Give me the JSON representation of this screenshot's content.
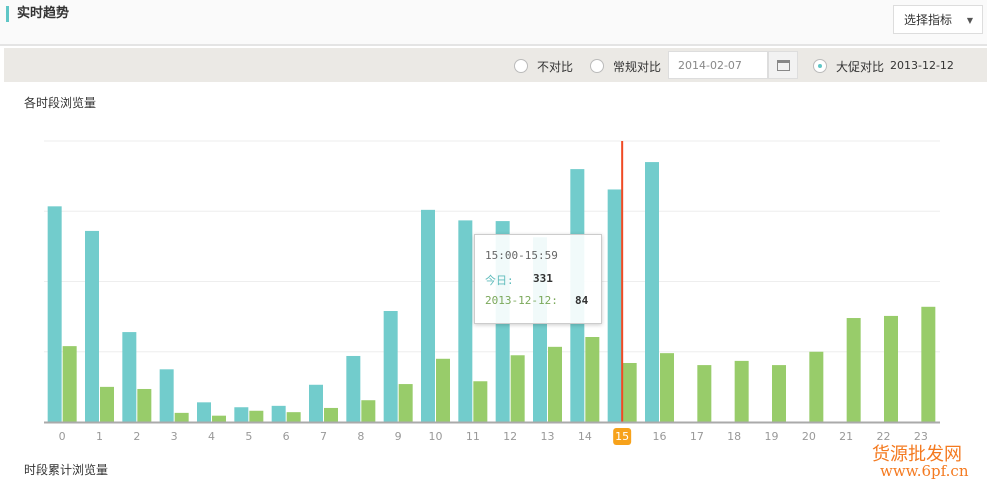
{
  "header": {
    "title": "实时趋势",
    "select_label": "选择指标"
  },
  "compare": {
    "options": [
      "不对比",
      "常规对比",
      "大促对比"
    ],
    "selected": "大促对比",
    "regular_date": "2014-02-07",
    "promo_date": "2013-12-12"
  },
  "section1_title": "各时段浏览量",
  "section2_title": "时段累计浏览量",
  "tooltip": {
    "time": "15:00-15:59",
    "today_label": "今日:",
    "today_value": "331",
    "compare_label": "2013-12-12:",
    "compare_value": "84"
  },
  "watermark": {
    "line1": "货源批发网",
    "line2": "www.6pf.cn"
  },
  "colors": {
    "today": "#72cccc",
    "compare": "#98cc6a",
    "cursor": "#f04a24",
    "highlight": "#f7a21b"
  },
  "chart_data": {
    "type": "bar",
    "ylim": [
      0,
      400
    ],
    "grid": true,
    "highlight_category": "15",
    "categories": [
      "0",
      "1",
      "2",
      "3",
      "4",
      "5",
      "6",
      "7",
      "8",
      "9",
      "10",
      "11",
      "12",
      "13",
      "14",
      "15",
      "16",
      "17",
      "18",
      "19",
      "20",
      "21",
      "22",
      "23"
    ],
    "series": [
      {
        "name": "今日",
        "values": [
          307,
          272,
          128,
          75,
          28,
          21,
          23,
          53,
          94,
          158,
          302,
          287,
          286,
          263,
          360,
          331,
          370,
          null,
          null,
          null,
          null,
          null,
          null,
          null
        ]
      },
      {
        "name": "2013-12-12",
        "values": [
          108,
          50,
          47,
          13,
          9,
          16,
          14,
          20,
          31,
          54,
          90,
          58,
          95,
          107,
          121,
          84,
          98,
          81,
          87,
          81,
          100,
          148,
          151,
          164
        ]
      }
    ]
  }
}
